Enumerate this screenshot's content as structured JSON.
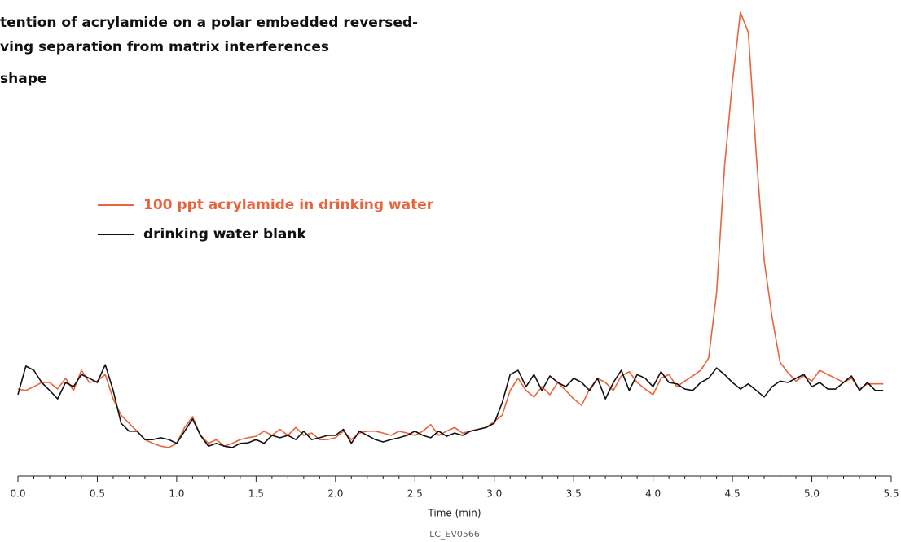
{
  "header": {
    "lines": [
      "tention of acrylamide on a polar embedded reversed-",
      "ving separation from matrix interferences",
      "shape"
    ]
  },
  "chart_data": {
    "type": "line",
    "xlabel": "Time (min)",
    "xlim": [
      0,
      5.5
    ],
    "ylim": [
      0,
      100
    ],
    "xticks": [
      {
        "value": 0,
        "label": "0.0"
      },
      0.5,
      {
        "value": 1,
        "label": "1.0"
      },
      1.5,
      {
        "value": 2,
        "label": "2.0"
      },
      2.5,
      {
        "value": 3,
        "label": "3.0"
      },
      3.5,
      {
        "value": 4,
        "label": "4.0"
      },
      4.5,
      {
        "value": 5,
        "label": "5.0"
      },
      5.5
    ],
    "xminorticks": [
      0.1,
      0.2,
      0.3,
      0.4,
      0.6,
      0.7,
      0.8,
      0.9,
      1.1,
      1.2,
      1.3,
      1.4,
      1.6,
      1.7,
      1.8,
      1.9,
      2.1,
      2.2,
      2.3,
      2.4,
      2.6,
      2.7,
      2.8,
      2.9,
      3.1,
      3.2,
      3.3,
      3.4,
      3.6,
      3.7,
      3.8,
      3.9,
      4.1,
      4.2,
      4.3,
      4.4,
      4.6,
      4.7,
      4.8,
      4.9,
      5.1,
      5.2,
      5.3,
      5.4
    ],
    "x": [
      0,
      0.05,
      0.1,
      0.15,
      0.2,
      0.25,
      0.3,
      0.35,
      0.4,
      0.45,
      0.5,
      0.55,
      0.6,
      0.65,
      0.7,
      0.75,
      0.8,
      0.85,
      0.9,
      0.95,
      1,
      1.05,
      1.1,
      1.15,
      1.2,
      1.25,
      1.3,
      1.35,
      1.4,
      1.45,
      1.5,
      1.55,
      1.6,
      1.65,
      1.7,
      1.75,
      1.8,
      1.85,
      1.9,
      1.95,
      2,
      2.05,
      2.1,
      2.15,
      2.2,
      2.25,
      2.3,
      2.35,
      2.4,
      2.45,
      2.5,
      2.55,
      2.6,
      2.65,
      2.7,
      2.75,
      2.8,
      2.85,
      2.9,
      2.95,
      3,
      3.05,
      3.1,
      3.15,
      3.2,
      3.25,
      3.3,
      3.35,
      3.4,
      3.45,
      3.5,
      3.55,
      3.6,
      3.65,
      3.7,
      3.75,
      3.8,
      3.85,
      3.9,
      3.95,
      4,
      4.05,
      4.1,
      4.15,
      4.2,
      4.25,
      4.3,
      4.35,
      4.4,
      4.45,
      4.5,
      4.55,
      4.6,
      4.65,
      4.7,
      4.75,
      4.8,
      4.85,
      4.9,
      4.95,
      5,
      5.05,
      5.1,
      5.15,
      5.2,
      5.25,
      5.3,
      5.35,
      5.4,
      5.45
    ],
    "series": [
      {
        "name": "100 ppt acrylamide in drinking water",
        "color": "#e8643c",
        "values": [
          18.6,
          18.3,
          19.1,
          20,
          20,
          18.6,
          20.9,
          18.3,
          22.6,
          20,
          20.3,
          21.7,
          16.5,
          13,
          11.3,
          9.6,
          7.8,
          7,
          6.4,
          6.1,
          7,
          10.4,
          12.7,
          8.7,
          7,
          7.8,
          6.4,
          7,
          7.8,
          8.2,
          8.5,
          9.6,
          8.7,
          10,
          8.7,
          10.4,
          8.7,
          9.2,
          7.8,
          7.8,
          8.2,
          9.6,
          7.8,
          9.2,
          9.6,
          9.6,
          9.2,
          8.7,
          9.6,
          9.2,
          8.7,
          9.6,
          11,
          8.7,
          9.6,
          10.4,
          9.2,
          9.6,
          10,
          10.4,
          11.7,
          13,
          18.3,
          20.9,
          18.3,
          16.9,
          19.1,
          17.4,
          20,
          18.3,
          16.5,
          15.1,
          18.6,
          20.9,
          20,
          18.3,
          21.4,
          22.3,
          20,
          18.6,
          17.4,
          20.9,
          21.7,
          19.1,
          20.3,
          21.4,
          22.6,
          25.2,
          39.1,
          66.1,
          84.3,
          99.1,
          94.8,
          68.7,
          46.1,
          33.9,
          24.3,
          22.1,
          20.3,
          21.4,
          20.3,
          22.6,
          21.7,
          20.9,
          20,
          20.9,
          18.6,
          19.7,
          19.7,
          19.7
        ]
      },
      {
        "name": "drinking water blank",
        "color": "#111111",
        "values": [
          17.4,
          23.5,
          22.6,
          20,
          18.3,
          16.5,
          20,
          19.1,
          21.7,
          20.9,
          20,
          23.8,
          18.3,
          11.3,
          9.6,
          9.6,
          7.8,
          7.8,
          8.2,
          7.8,
          7,
          9.6,
          12.2,
          8.7,
          6.4,
          7,
          6.4,
          6.1,
          7,
          7.1,
          7.8,
          7,
          8.7,
          8.2,
          8.7,
          7.8,
          9.6,
          7.8,
          8.2,
          8.7,
          8.7,
          10,
          7,
          9.6,
          8.7,
          7.8,
          7.3,
          7.8,
          8.2,
          8.7,
          9.6,
          8.7,
          8.2,
          9.6,
          8.5,
          9.2,
          8.7,
          9.6,
          10,
          10.4,
          11.3,
          15.7,
          21.7,
          22.6,
          19.1,
          21.7,
          18.3,
          21.4,
          20,
          19.1,
          20.9,
          20,
          18.3,
          20.9,
          16.5,
          20,
          22.6,
          18.3,
          21.7,
          20.9,
          19.1,
          22.3,
          20,
          19.7,
          18.6,
          18.3,
          20,
          20.9,
          23.1,
          21.7,
          20,
          18.6,
          19.7,
          18.3,
          16.9,
          19.1,
          20.3,
          20,
          20.9,
          21.7,
          19.1,
          20,
          18.6,
          18.6,
          20,
          21.4,
          18.3,
          20,
          18.3,
          18.3
        ]
      }
    ]
  },
  "footer": {
    "code": "LC_EV0566"
  }
}
